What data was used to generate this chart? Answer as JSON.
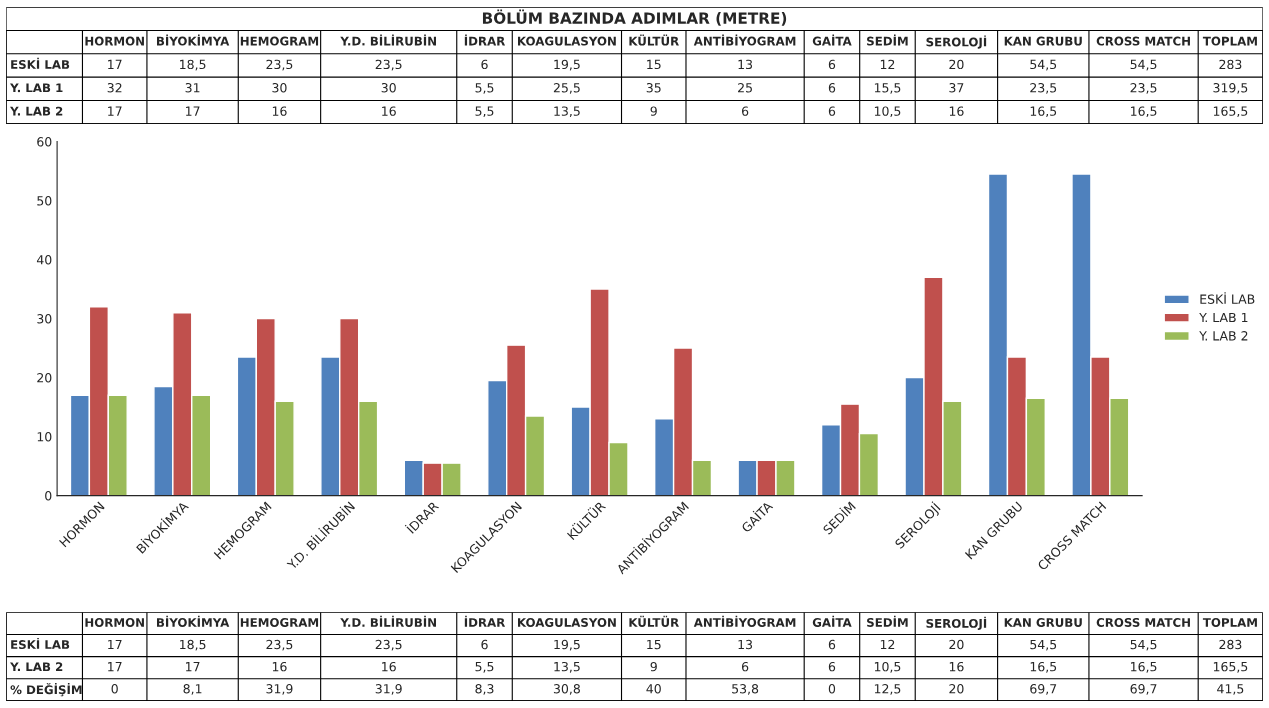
{
  "chart_data": [
    {
      "type": "other",
      "title": "BÖLÜM BAZINDA ADIMLAR (METRE)",
      "categories": [
        "HORMON",
        "BİYOKİMYA",
        "HEMOGRAM",
        "Y.D. BİLİRUBİN",
        "İDRAR",
        "KOAGULASYON",
        "KÜLTÜR",
        "ANTİBİYOGRAM",
        "GAİTA",
        "SEDİM",
        "SEROLOJİ",
        "KAN GRUBU",
        "CROSS MATCH",
        "TOPLAM"
      ],
      "series": [
        {
          "name": "ESKİ LAB",
          "values": [
            17,
            18.5,
            23.5,
            23.5,
            6,
            19.5,
            15,
            13,
            6,
            12,
            20,
            54.5,
            54.5,
            283
          ],
          "value_labels": [
            "17",
            "18,5",
            "23,5",
            "23,5",
            "6",
            "19,5",
            "15",
            "13",
            "6",
            "12",
            "20",
            "54,5",
            "54,5",
            "283"
          ]
        },
        {
          "name": "Y. LAB 1",
          "values": [
            32,
            31,
            30,
            30,
            5.5,
            25.5,
            35,
            25,
            6,
            15.5,
            37,
            23.5,
            23.5,
            319.5
          ],
          "value_labels": [
            "32",
            "31",
            "30",
            "30",
            "5,5",
            "25,5",
            "35",
            "25",
            "6",
            "15,5",
            "37",
            "23,5",
            "23,5",
            "319,5"
          ]
        },
        {
          "name": "Y. LAB 2",
          "values": [
            17,
            17,
            16,
            16,
            5.5,
            13.5,
            9,
            6,
            6,
            10.5,
            16,
            16.5,
            16.5,
            165.5
          ],
          "value_labels": [
            "17",
            "17",
            "16",
            "16",
            "5,5",
            "13,5",
            "9",
            "6",
            "6",
            "10,5",
            "16",
            "16,5",
            "16,5",
            "165,5"
          ]
        }
      ]
    },
    {
      "type": "bar",
      "categories": [
        "HORMON",
        "BİYOKİMYA",
        "HEMOGRAM",
        "Y.D. BİLİRUBİN",
        "İDRAR",
        "KOAGULASYON",
        "KÜLTÜR",
        "ANTİBİYOGRAM",
        "GAİTA",
        "SEDİM",
        "SEROLOJİ",
        "KAN GRUBU",
        "CROSS MATCH"
      ],
      "ylim": [
        0,
        60
      ],
      "yticks": [
        0,
        10,
        20,
        30,
        40,
        50,
        60
      ],
      "grid": false,
      "legend": "right",
      "series": [
        {
          "name": "ESKİ LAB",
          "color": "#4f81bd",
          "values": [
            17,
            18.5,
            23.5,
            23.5,
            6,
            19.5,
            15,
            13,
            6,
            12,
            20,
            54.5,
            54.5
          ]
        },
        {
          "name": "Y. LAB 1",
          "color": "#c0504d",
          "values": [
            32,
            31,
            30,
            30,
            5.5,
            25.5,
            35,
            25,
            6,
            15.5,
            37,
            23.5,
            23.5
          ]
        },
        {
          "name": "Y. LAB 2",
          "color": "#9bbb59",
          "values": [
            17,
            17,
            16,
            16,
            5.5,
            13.5,
            9,
            6,
            6,
            10.5,
            16,
            16.5,
            16.5
          ]
        }
      ]
    },
    {
      "type": "other",
      "categories": [
        "HORMON",
        "BİYOKİMYA",
        "HEMOGRAM",
        "Y.D. BİLİRUBİN",
        "İDRAR",
        "KOAGULASYON",
        "KÜLTÜR",
        "ANTİBİYOGRAM",
        "GAİTA",
        "SEDİM",
        "SEROLOJİ",
        "KAN GRUBU",
        "CROSS MATCH",
        "TOPLAM"
      ],
      "series": [
        {
          "name": "ESKİ LAB",
          "values": [
            17,
            18.5,
            23.5,
            23.5,
            6,
            19.5,
            15,
            13,
            6,
            12,
            20,
            54.5,
            54.5,
            283
          ],
          "value_labels": [
            "17",
            "18,5",
            "23,5",
            "23,5",
            "6",
            "19,5",
            "15",
            "13",
            "6",
            "12",
            "20",
            "54,5",
            "54,5",
            "283"
          ]
        },
        {
          "name": "Y. LAB 2",
          "values": [
            17,
            17,
            16,
            16,
            5.5,
            13.5,
            9,
            6,
            6,
            10.5,
            16,
            16.5,
            16.5,
            165.5
          ],
          "value_labels": [
            "17",
            "17",
            "16",
            "16",
            "5,5",
            "13,5",
            "9",
            "6",
            "6",
            "10,5",
            "16",
            "16,5",
            "16,5",
            "165,5"
          ]
        },
        {
          "name": "% DEĞİŞİM",
          "values": [
            0,
            8.1,
            31.9,
            31.9,
            8.3,
            30.8,
            40,
            53.8,
            0,
            12.5,
            20,
            69.7,
            69.7,
            41.5
          ],
          "value_labels": [
            "0",
            "8,1",
            "31,9",
            "31,9",
            "8,3",
            "30,8",
            "40",
            "53,8",
            "0",
            "12,5",
            "20",
            "69,7",
            "69,7",
            "41,5"
          ]
        }
      ]
    }
  ]
}
